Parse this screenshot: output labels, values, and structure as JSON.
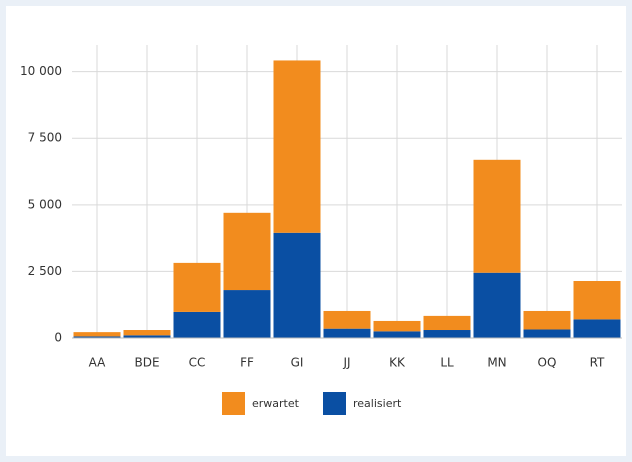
{
  "chart_data": {
    "type": "stacked-bar",
    "categories": [
      "AA",
      "BDE",
      "CC",
      "FF",
      "GI",
      "JJ",
      "KK",
      "LL",
      "MN",
      "OQ",
      "RT"
    ],
    "series": [
      {
        "name": "erwartet",
        "color": "#f28c1e",
        "values": [
          160,
          200,
          1840,
          2900,
          6470,
          665,
          390,
          530,
          4240,
          695,
          1440
        ]
      },
      {
        "name": "realisiert",
        "color": "#0a4fa3",
        "values": [
          60,
          100,
          980,
          1800,
          3950,
          350,
          250,
          300,
          2450,
          320,
          700
        ]
      }
    ],
    "ylim": [
      0,
      11000
    ],
    "yticks": [
      0,
      {
        "value": 2500,
        "label": "2 500"
      },
      {
        "value": 5000,
        "label": "5 000"
      },
      {
        "value": 7500,
        "label": "7 500"
      },
      {
        "value": 10000,
        "label": "10 000"
      }
    ],
    "grid": true
  }
}
